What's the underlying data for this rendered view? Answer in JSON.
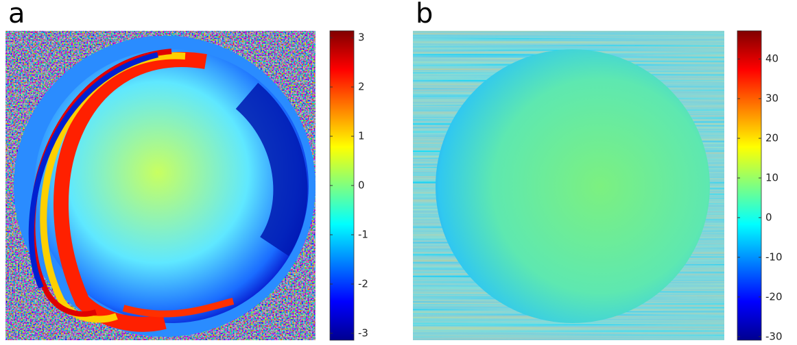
{
  "chart_data": [
    {
      "type": "heatmap",
      "label": "a",
      "colormap": "jet",
      "clim": [
        -3.14,
        3.14
      ],
      "cticks": [
        -3,
        -2,
        -1,
        0,
        1,
        2,
        3
      ]
    },
    {
      "type": "heatmap",
      "label": "b",
      "colormap": "jet",
      "clim": [
        -30.9,
        47.1
      ],
      "cticks": [
        -30,
        -20,
        -10,
        0,
        10,
        20,
        30,
        40
      ]
    }
  ]
}
